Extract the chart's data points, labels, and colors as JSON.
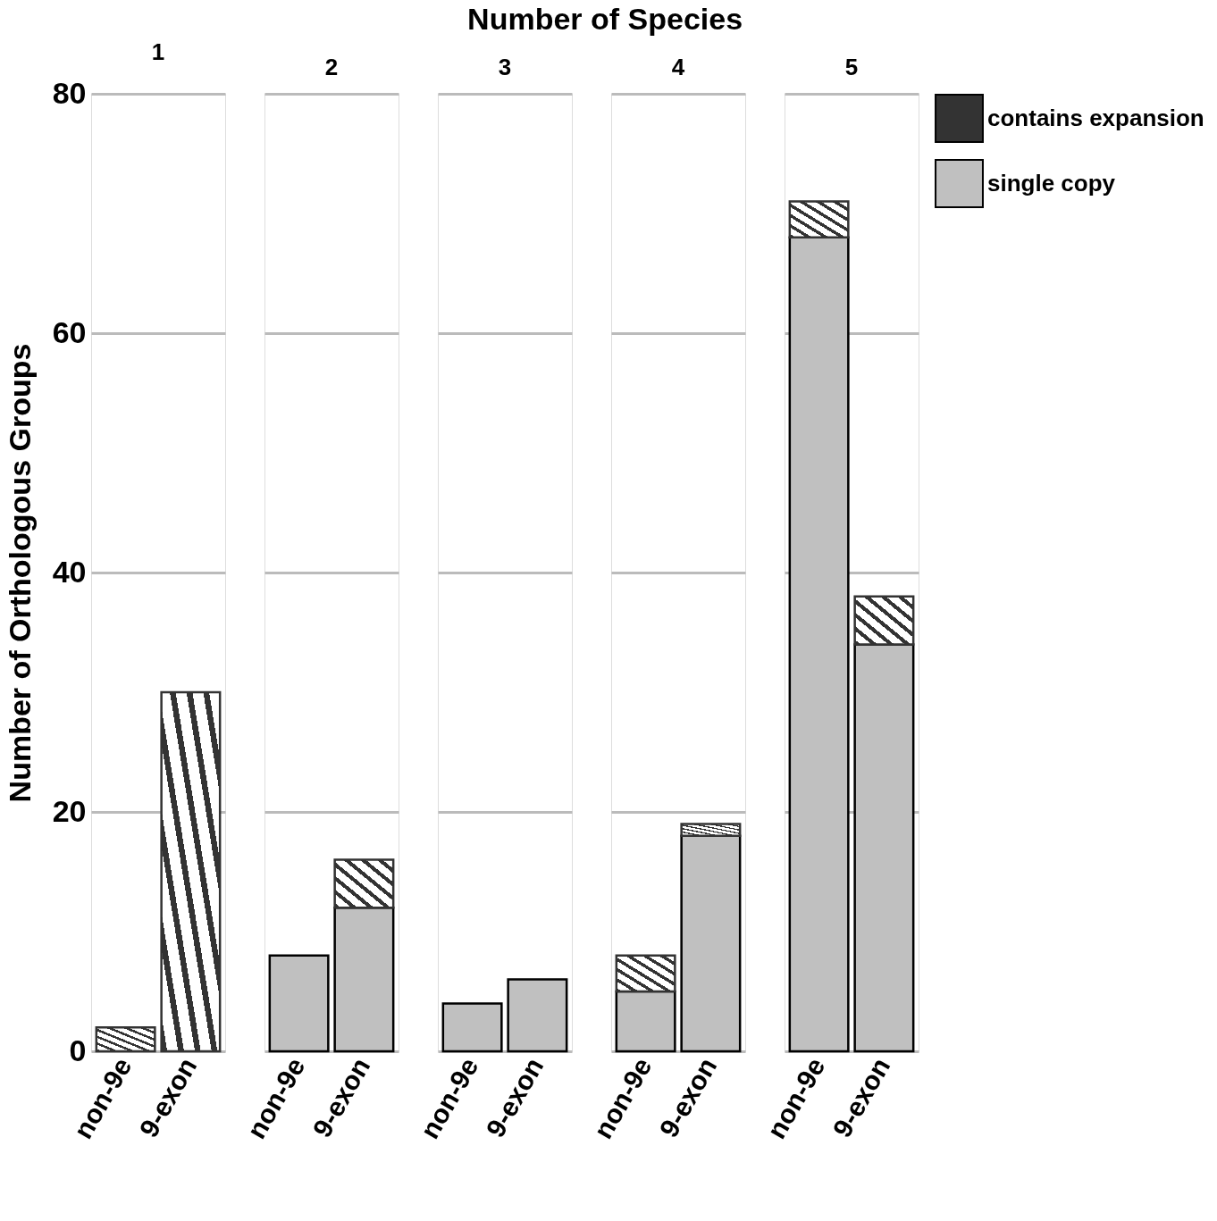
{
  "chart_data": [
    {
      "type": "bar",
      "title": "1",
      "x2label": "Number of Species",
      "ylabel": "Number of Orthologous Groups",
      "categories": [
        "non-9e",
        "9-exon"
      ],
      "stacked": true,
      "ylim": [
        0,
        80
      ],
      "yticks": [
        0,
        20,
        40,
        60,
        80
      ],
      "grid": "y",
      "series": [
        {
          "color": "#c0c0c0",
          "values": [
            null,
            null
          ]
        },
        {
          "color": "#333333",
          "values": [
            2,
            30
          ]
        }
      ]
    },
    {
      "type": "bar",
      "title": "2",
      "categories": [
        "non-9e",
        "9-exon"
      ],
      "stacked": true,
      "ylim": [
        0,
        80
      ],
      "yticks": [
        0,
        20,
        40,
        60,
        80
      ],
      "grid": "y",
      "tick_labels": "x",
      "series": [
        {
          "color": "#c0c0c0",
          "values": [
            8,
            12
          ]
        },
        {
          "color": "#333333",
          "values": [
            null,
            4
          ]
        }
      ]
    },
    {
      "type": "bar",
      "title": "3",
      "categories": [
        "non-9e",
        "9-exon"
      ],
      "stacked": true,
      "ylim": [
        0,
        80
      ],
      "yticks": [
        0,
        20,
        40,
        60,
        80
      ],
      "grid": "y",
      "tick_labels": "x",
      "series": [
        {
          "color": "#c0c0c0",
          "values": [
            4,
            6
          ]
        },
        {
          "color": "#333333",
          "values": [
            null,
            null
          ]
        }
      ]
    },
    {
      "type": "bar",
      "title": "4",
      "categories": [
        "non-9e",
        "9-exon"
      ],
      "stacked": true,
      "ylim": [
        0,
        80
      ],
      "yticks": [
        0,
        20,
        40,
        60,
        80
      ],
      "grid": "y",
      "tick_labels": "x",
      "series": [
        {
          "color": "#c0c0c0",
          "values": [
            5,
            18
          ]
        },
        {
          "color": "#333333",
          "values": [
            3,
            1
          ]
        }
      ]
    },
    {
      "type": "bar",
      "title": "5",
      "categories": [
        "non-9e",
        "9-exon"
      ],
      "stacked": true,
      "ylim": [
        0,
        80
      ],
      "yticks": [
        0,
        20,
        40,
        60,
        80
      ],
      "grid": "y",
      "legend": "right",
      "tick_labels": "x",
      "series": [
        {
          "name": "single copy",
          "color": "#c0c0c0",
          "values": [
            68,
            34
          ]
        },
        {
          "name": "contains expansion",
          "color": "#333333",
          "values": [
            3,
            4
          ]
        }
      ]
    }
  ]
}
